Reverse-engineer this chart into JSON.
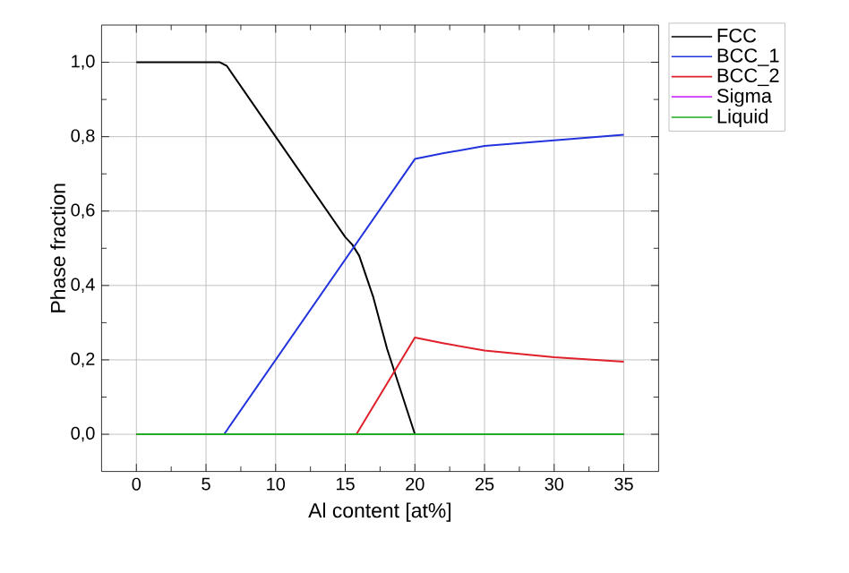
{
  "chart_data": {
    "type": "line",
    "xlabel": "Al content [at%]",
    "ylabel": "Phase fraction",
    "x": [
      0,
      6,
      6.5,
      10,
      15,
      15.5,
      16,
      17,
      18,
      20,
      35
    ],
    "series": [
      {
        "name": "FCC",
        "color": "#000000",
        "values": [
          1.0,
          1.0,
          0.99,
          0.8,
          0.53,
          0.51,
          0.48,
          0.37,
          0.23,
          0.0,
          0.0
        ]
      },
      {
        "name": "BCC_1",
        "color": "#2233dd",
        "x": [
          0,
          6.3,
          20,
          22,
          25,
          30,
          35
        ],
        "values": [
          0,
          0,
          0.74,
          0.755,
          0.775,
          0.79,
          0.805
        ]
      },
      {
        "name": "BCC_2",
        "color": "#e0202a",
        "x": [
          0,
          15.8,
          20,
          22,
          25,
          30,
          35
        ],
        "values": [
          0,
          0,
          0.26,
          0.245,
          0.225,
          0.207,
          0.195
        ]
      },
      {
        "name": "Sigma",
        "color": "#cc33ff",
        "values": [
          null,
          null,
          null,
          null,
          null,
          null,
          null,
          null,
          null,
          null,
          null
        ]
      },
      {
        "name": "Liquid",
        "color": "#22aa22",
        "x": [
          0,
          35
        ],
        "values": [
          0,
          0
        ]
      }
    ],
    "xlim": [
      -2.5,
      37.5
    ],
    "ylim": [
      -0.1,
      1.1
    ],
    "xticks": [
      0,
      5,
      10,
      15,
      20,
      25,
      30,
      35
    ],
    "yticks": [
      {
        "value": 0,
        "label": "0,0"
      },
      {
        "value": 0.2,
        "label": "0,2"
      },
      {
        "value": 0.4,
        "label": "0,4"
      },
      {
        "value": 0.6,
        "label": "0,6"
      },
      {
        "value": 0.8,
        "label": "0,8"
      },
      {
        "value": 1.0,
        "label": "1,0"
      }
    ],
    "grid": true,
    "legend": "right",
    "line_style": "solid"
  }
}
